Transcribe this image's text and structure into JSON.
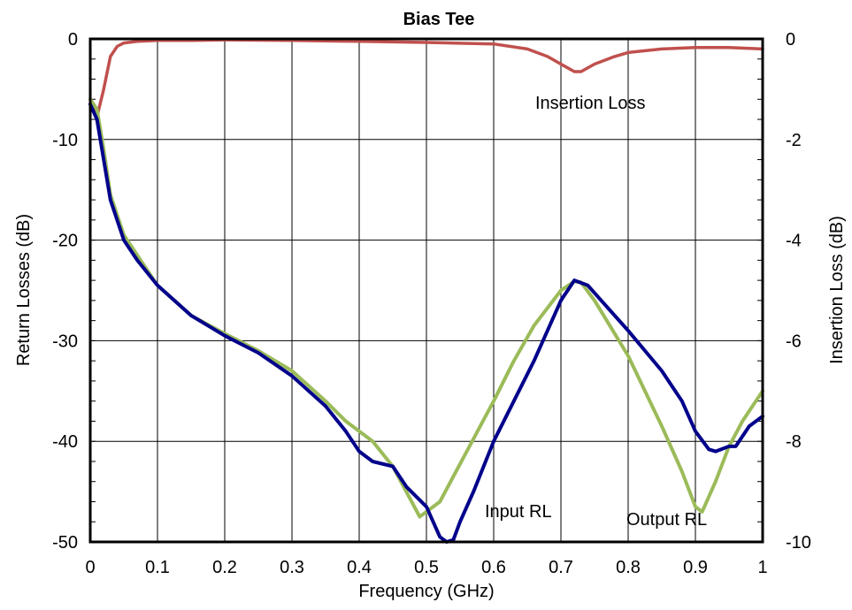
{
  "chart_data": {
    "type": "line",
    "title": "Bias Tee",
    "xlabel": "Frequency (GHz)",
    "ylabel": "Return Losses (dB)",
    "y2label": "Insertion Loss (dB)",
    "xlim": [
      0,
      1
    ],
    "ylim": [
      -50,
      0
    ],
    "y2lim": [
      -10,
      0
    ],
    "grid": true,
    "x_ticks": [
      "0",
      "0.1",
      "0.2",
      "0.3",
      "0.4",
      "0.5",
      "0.6",
      "0.7",
      "0.8",
      "0.9",
      "1"
    ],
    "y_ticks": [
      "0",
      "-10",
      "-20",
      "-30",
      "-40",
      "-50"
    ],
    "y2_ticks": [
      "0",
      "-2",
      "-4",
      "-6",
      "-8",
      "-10"
    ],
    "annotations": [
      "Insertion Loss",
      "Input RL",
      "Output RL"
    ],
    "series": [
      {
        "name": "Insertion Loss",
        "axis": "right",
        "color": "#c0504d",
        "x": [
          0,
          0.01,
          0.02,
          0.03,
          0.04,
          0.05,
          0.07,
          0.1,
          0.15,
          0.2,
          0.3,
          0.4,
          0.5,
          0.6,
          0.65,
          0.68,
          0.7,
          0.72,
          0.73,
          0.75,
          0.78,
          0.8,
          0.85,
          0.9,
          0.95,
          1.0
        ],
        "y": [
          -1.2,
          -1.55,
          -1.0,
          -0.35,
          -0.15,
          -0.08,
          -0.05,
          -0.03,
          -0.03,
          -0.02,
          -0.03,
          -0.05,
          -0.07,
          -0.1,
          -0.2,
          -0.35,
          -0.5,
          -0.65,
          -0.65,
          -0.5,
          -0.35,
          -0.27,
          -0.2,
          -0.17,
          -0.17,
          -0.2
        ]
      },
      {
        "name": "Input RL",
        "axis": "left",
        "color": "#00008b",
        "x": [
          0,
          0.01,
          0.02,
          0.03,
          0.05,
          0.07,
          0.1,
          0.15,
          0.2,
          0.25,
          0.3,
          0.35,
          0.38,
          0.4,
          0.42,
          0.45,
          0.47,
          0.5,
          0.52,
          0.53,
          0.54,
          0.55,
          0.57,
          0.6,
          0.63,
          0.66,
          0.7,
          0.72,
          0.74,
          0.76,
          0.8,
          0.85,
          0.88,
          0.9,
          0.92,
          0.93,
          0.95,
          0.96,
          0.98,
          1.0
        ],
        "y": [
          -6.5,
          -8,
          -12,
          -16,
          -20,
          -22,
          -24.5,
          -27.5,
          -29.5,
          -31.2,
          -33.5,
          -36.5,
          -39,
          -41,
          -42,
          -42.5,
          -44.5,
          -46.5,
          -49.5,
          -50.5,
          -49.8,
          -48,
          -45,
          -40,
          -36,
          -32,
          -26,
          -24,
          -24.5,
          -26,
          -29,
          -33,
          -36,
          -39,
          -40.8,
          -41,
          -40.5,
          -40.5,
          -38.5,
          -37.5
        ]
      },
      {
        "name": "Output RL",
        "axis": "left",
        "color": "#9bbb59",
        "x": [
          0,
          0.01,
          0.02,
          0.03,
          0.05,
          0.07,
          0.1,
          0.15,
          0.2,
          0.25,
          0.3,
          0.35,
          0.38,
          0.42,
          0.45,
          0.47,
          0.49,
          0.5,
          0.52,
          0.54,
          0.56,
          0.58,
          0.6,
          0.63,
          0.66,
          0.7,
          0.72,
          0.73,
          0.75,
          0.8,
          0.85,
          0.88,
          0.9,
          0.91,
          0.93,
          0.95,
          0.97,
          1.0
        ],
        "y": [
          -6,
          -7,
          -11,
          -15.5,
          -19.5,
          -21.5,
          -24.5,
          -27.5,
          -29.3,
          -31,
          -33,
          -36,
          -38,
          -40,
          -42.5,
          -45,
          -47.5,
          -47,
          -46,
          -43.5,
          -41,
          -38.5,
          -36,
          -32,
          -28.5,
          -25,
          -24.1,
          -24.2,
          -26,
          -31.5,
          -38.5,
          -43,
          -46.5,
          -47,
          -44,
          -40.5,
          -38,
          -35
        ]
      }
    ]
  }
}
